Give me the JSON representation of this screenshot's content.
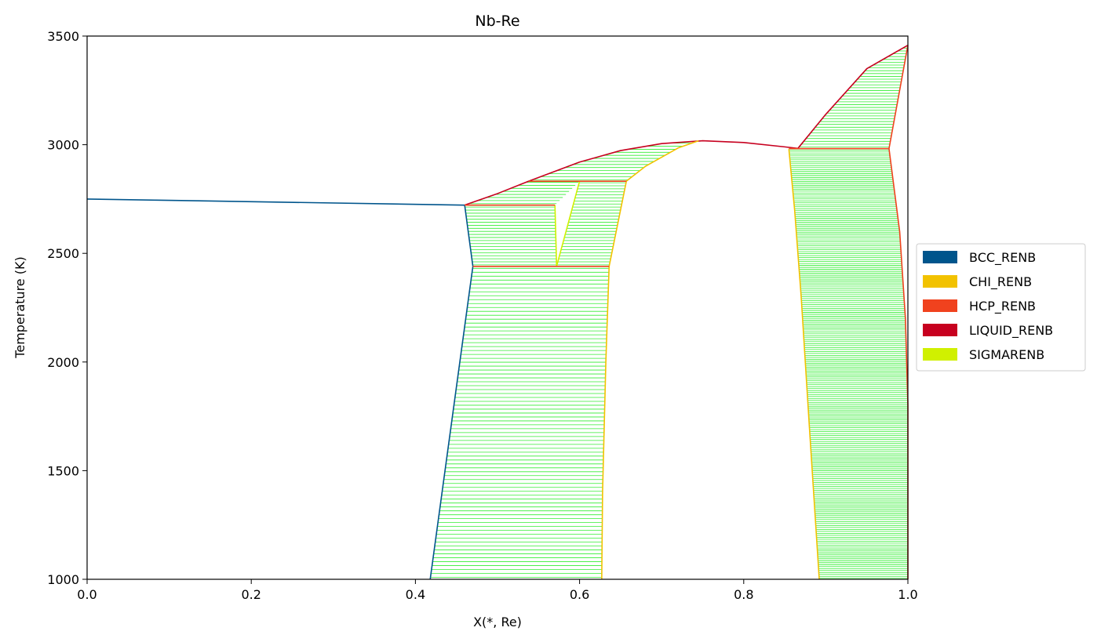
{
  "chart_data": {
    "type": "line",
    "title": "Nb-Re",
    "xlabel": "X(*, Re)",
    "ylabel": "Temperature (K)",
    "xlim": [
      0.0,
      1.0
    ],
    "ylim": [
      1000,
      3500
    ],
    "xticks": [
      0.0,
      0.2,
      0.4,
      0.6,
      0.8,
      1.0
    ],
    "xtick_labels": [
      "0.0",
      "0.2",
      "0.4",
      "0.6",
      "0.8",
      "1.0"
    ],
    "yticks": [
      1000,
      1500,
      2000,
      2500,
      3000,
      3500
    ],
    "ytick_labels": [
      "1000",
      "1500",
      "2000",
      "2500",
      "3000",
      "3500"
    ],
    "grid": false,
    "legend_position": "outside-right",
    "tieline_color": "#33ee33",
    "series": [
      {
        "name": "BCC_RENB",
        "color": "#00558c"
      },
      {
        "name": "CHI_RENB",
        "color": "#f2c200"
      },
      {
        "name": "HCP_RENB",
        "color": "#f0421e"
      },
      {
        "name": "LIQUID_RENB",
        "color": "#c7001f"
      },
      {
        "name": "SIGMARENB",
        "color": "#d0f000"
      }
    ],
    "boundaries": [
      {
        "phase": "BCC_RENB",
        "points": [
          [
            0.0,
            2750
          ],
          [
            0.46,
            2722
          ]
        ]
      },
      {
        "phase": "BCC_RENB",
        "points": [
          [
            0.46,
            2722
          ],
          [
            0.47,
            2440
          ]
        ]
      },
      {
        "phase": "BCC_RENB",
        "points": [
          [
            0.47,
            2440
          ],
          [
            0.418,
            1000
          ]
        ]
      },
      {
        "phase": "LIQUID_RENB",
        "points": [
          [
            0.46,
            2722
          ],
          [
            0.5,
            2775
          ],
          [
            0.538,
            2832
          ]
        ]
      },
      {
        "phase": "LIQUID_RENB",
        "points": [
          [
            0.538,
            2832
          ],
          [
            0.6,
            2920
          ],
          [
            0.65,
            2973
          ],
          [
            0.7,
            3005
          ],
          [
            0.75,
            3018
          ],
          [
            0.8,
            3010
          ],
          [
            0.85,
            2990
          ],
          [
            0.866,
            2983
          ]
        ]
      },
      {
        "phase": "LIQUID_RENB",
        "points": [
          [
            0.866,
            2983
          ],
          [
            0.9,
            3140
          ],
          [
            0.95,
            3350
          ],
          [
            1.0,
            3458
          ]
        ]
      },
      {
        "phase": "HCP_RENB",
        "points": [
          [
            1.0,
            3458
          ],
          [
            0.977,
            2982
          ]
        ]
      },
      {
        "phase": "HCP_RENB",
        "points": [
          [
            0.977,
            2982
          ],
          [
            0.99,
            2600
          ],
          [
            0.997,
            2200
          ],
          [
            1.0,
            1800
          ],
          [
            1.0,
            1000
          ]
        ]
      },
      {
        "phase": "CHI_RENB",
        "points": [
          [
            0.855,
            2980
          ],
          [
            0.862,
            2700
          ],
          [
            0.87,
            2300
          ],
          [
            0.88,
            1700
          ],
          [
            0.892,
            1000
          ]
        ]
      },
      {
        "phase": "CHI_RENB",
        "points": [
          [
            0.657,
            2832
          ],
          [
            0.636,
            2440
          ],
          [
            0.632,
            2000
          ],
          [
            0.628,
            1400
          ],
          [
            0.627,
            1000
          ]
        ]
      },
      {
        "phase": "CHI_RENB",
        "points": [
          [
            0.657,
            2832
          ],
          [
            0.68,
            2900
          ],
          [
            0.72,
            2985
          ],
          [
            0.745,
            3018
          ]
        ]
      },
      {
        "phase": "SIGMARENB",
        "points": [
          [
            0.57,
            2722
          ],
          [
            0.572,
            2440
          ],
          [
            0.6,
            2832
          ]
        ]
      },
      {
        "phase": "HCP_RENB",
        "points": [
          [
            0.855,
            2982
          ],
          [
            0.977,
            2982
          ]
        ]
      },
      {
        "phase": "HCP_RENB",
        "points": [
          [
            0.46,
            2722
          ],
          [
            0.57,
            2722
          ]
        ]
      },
      {
        "phase": "HCP_RENB",
        "points": [
          [
            0.538,
            2832
          ],
          [
            0.657,
            2832
          ]
        ]
      },
      {
        "phase": "HCP_RENB",
        "points": [
          [
            0.47,
            2440
          ],
          [
            0.636,
            2440
          ]
        ]
      }
    ],
    "tie_regions": [
      {
        "left": [
          [
            0.47,
            2440
          ],
          [
            0.418,
            1000
          ]
        ],
        "right": [
          [
            0.636,
            2440
          ],
          [
            0.632,
            2000
          ],
          [
            0.628,
            1400
          ],
          [
            0.627,
            1000
          ]
        ],
        "range": [
          1000,
          2440
        ],
        "step": 18
      },
      {
        "left": [
          [
            0.46,
            2722
          ],
          [
            0.47,
            2440
          ]
        ],
        "right": [
          [
            0.57,
            2722
          ],
          [
            0.572,
            2440
          ]
        ],
        "range": [
          2440,
          2722
        ],
        "step": 14
      },
      {
        "left": [
          [
            0.6,
            2832
          ],
          [
            0.572,
            2440
          ]
        ],
        "right": [
          [
            0.657,
            2832
          ],
          [
            0.636,
            2440
          ]
        ],
        "range": [
          2440,
          2832
        ],
        "step": 14
      },
      {
        "left": [
          [
            0.538,
            2832
          ],
          [
            0.5,
            2775
          ],
          [
            0.46,
            2722
          ]
        ],
        "right": [
          [
            0.6,
            2832
          ],
          [
            0.57,
            2722
          ]
        ],
        "range": [
          2722,
          2832
        ],
        "step": 14
      },
      {
        "left": [
          [
            0.745,
            3018
          ],
          [
            0.7,
            3005
          ],
          [
            0.65,
            2973
          ],
          [
            0.6,
            2920
          ],
          [
            0.538,
            2832
          ]
        ],
        "right": [
          [
            0.745,
            3018
          ],
          [
            0.72,
            2985
          ],
          [
            0.68,
            2900
          ],
          [
            0.657,
            2832
          ]
        ],
        "range": [
          2832,
          3018
        ],
        "step": 14
      },
      {
        "left": [
          [
            0.855,
            2980
          ],
          [
            0.862,
            2700
          ],
          [
            0.87,
            2300
          ],
          [
            0.88,
            1700
          ],
          [
            0.892,
            1000
          ]
        ],
        "right": [
          [
            0.977,
            2982
          ],
          [
            0.99,
            2600
          ],
          [
            0.997,
            2200
          ],
          [
            1.0,
            1800
          ],
          [
            1.0,
            1000
          ]
        ],
        "range": [
          1000,
          2980
        ],
        "step": 9
      },
      {
        "left": [
          [
            0.866,
            2983
          ],
          [
            0.9,
            3140
          ],
          [
            0.95,
            3350
          ],
          [
            1.0,
            3458
          ]
        ],
        "right": [
          [
            0.977,
            2982
          ],
          [
            1.0,
            3458
          ]
        ],
        "range": [
          2983,
          3458
        ],
        "step": 13
      }
    ]
  }
}
